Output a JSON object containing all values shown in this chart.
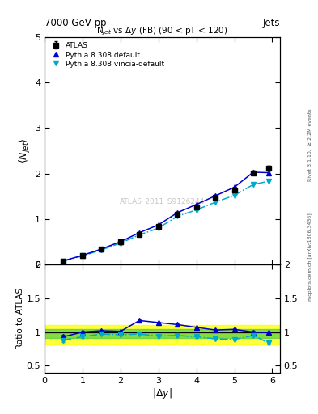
{
  "title_main": "N$_{jet}$ vs $\\Delta y$ (FB) (90 < pT < 120)",
  "header_left": "7000 GeV pp",
  "header_right": "Jets",
  "watermark": "ATLAS_2011_S9126244",
  "right_label_bottom": "mcplots.cern.ch [arXiv:1306.3436]",
  "right_label_top": "Rivet 3.1.10,  ≥ 2.2M events",
  "xlabel": "$|\\Delta y|$",
  "ylabel_main": "$\\langle N_{jet}\\rangle$",
  "ylabel_ratio": "Ratio to ATLAS",
  "x_data": [
    0.5,
    1.0,
    1.5,
    2.0,
    2.5,
    3.0,
    3.5,
    4.0,
    4.5,
    5.0,
    5.5,
    5.9
  ],
  "atlas_y": [
    0.08,
    0.2,
    0.33,
    0.49,
    0.66,
    0.83,
    1.1,
    1.27,
    1.47,
    1.63,
    2.02,
    2.12
  ],
  "atlas_yerr": [
    0.005,
    0.008,
    0.01,
    0.012,
    0.015,
    0.018,
    0.02,
    0.025,
    0.03,
    0.035,
    0.05,
    0.06
  ],
  "pythia_default_y": [
    0.08,
    0.2,
    0.34,
    0.5,
    0.7,
    0.87,
    1.14,
    1.32,
    1.51,
    1.7,
    2.03,
    2.02
  ],
  "pythia_vincia_y": [
    0.075,
    0.19,
    0.32,
    0.47,
    0.65,
    0.8,
    1.06,
    1.2,
    1.37,
    1.52,
    1.76,
    1.83
  ],
  "ratio_default_y": [
    0.93,
    1.0,
    1.02,
    1.01,
    1.17,
    1.14,
    1.11,
    1.07,
    1.03,
    1.04,
    1.0,
    0.99
  ],
  "ratio_vincia_y": [
    0.88,
    0.93,
    0.97,
    0.96,
    0.97,
    0.94,
    0.95,
    0.93,
    0.9,
    0.89,
    0.95,
    0.84
  ],
  "ratio_default_yerr": [
    0.025,
    0.018,
    0.015,
    0.014,
    0.014,
    0.014,
    0.013,
    0.013,
    0.013,
    0.013,
    0.015,
    0.02
  ],
  "ratio_vincia_yerr": [
    0.025,
    0.02,
    0.016,
    0.015,
    0.015,
    0.015,
    0.015,
    0.015,
    0.018,
    0.018,
    0.02,
    0.025
  ],
  "band_yellow_lo": 0.82,
  "band_yellow_hi": 1.1,
  "band_green_lo": 0.915,
  "band_green_hi": 1.04,
  "color_atlas": "#000000",
  "color_default": "#0000cc",
  "color_vincia": "#00aacc",
  "color_yellow": "#ffff00",
  "color_green": "#44cc44",
  "ylim_main": [
    0.0,
    5.0
  ],
  "ylim_ratio": [
    0.4,
    2.0
  ],
  "xlim": [
    0.0,
    6.2
  ],
  "yticks_main": [
    0,
    1,
    2,
    3,
    4,
    5
  ],
  "yticks_ratio": [
    0.5,
    1.0,
    1.5,
    2.0
  ]
}
